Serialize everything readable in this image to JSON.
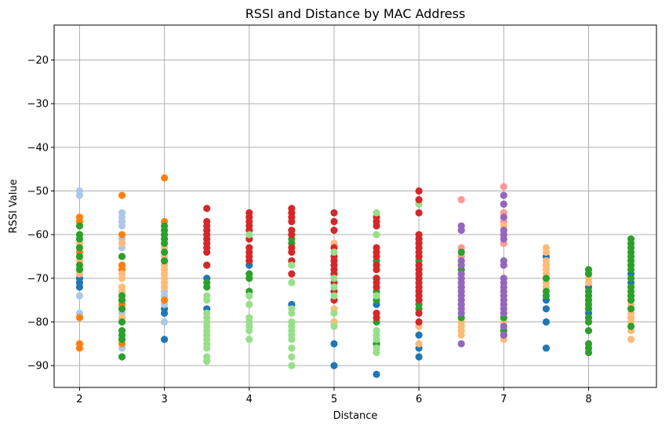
{
  "chart_data": {
    "type": "scatter",
    "title": "RSSI and Distance by MAC Address",
    "xlabel": "Distance",
    "ylabel": "RSSI Value",
    "xlim": [
      1.7,
      8.8
    ],
    "ylim": [
      -95,
      -12
    ],
    "xticks": [
      2,
      3,
      4,
      5,
      6,
      7,
      8
    ],
    "yticks": [
      -90,
      -80,
      -70,
      -60,
      -50,
      -40,
      -30,
      -20
    ],
    "xtick_labels": [
      "2",
      "3",
      "4",
      "5",
      "6",
      "7",
      "8"
    ],
    "ytick_labels": [
      "−90",
      "−80",
      "−70",
      "−60",
      "−50",
      "−40",
      "−30",
      "−20"
    ],
    "grid": true,
    "legend": "none",
    "series": [
      {
        "color": "#1f77b4",
        "x": 2,
        "y": [
          -70,
          -72,
          -71
        ]
      },
      {
        "color": "#aec7e8",
        "x": 2,
        "y": [
          -50,
          -51,
          -74,
          -78,
          -68,
          -66
        ]
      },
      {
        "color": "#ff7f0e",
        "x": 2,
        "y": [
          -56,
          -57,
          -79,
          -85,
          -86,
          -64
        ]
      },
      {
        "color": "#ffbb78",
        "x": 2,
        "y": [
          -60,
          -62,
          -66,
          -69
        ]
      },
      {
        "color": "#2ca02c",
        "x": 2,
        "y": [
          -58,
          -60,
          -61,
          -63,
          -65,
          -67,
          -68
        ]
      },
      {
        "color": "#aec7e8",
        "x": 2.5,
        "y": [
          -55,
          -56,
          -57,
          -58,
          -61,
          -63,
          -67,
          -73,
          -78,
          -86
        ]
      },
      {
        "color": "#ff7f0e",
        "x": 2.5,
        "y": [
          -51,
          -60,
          -67,
          -68,
          -75,
          -76,
          -77,
          -84,
          -85
        ]
      },
      {
        "color": "#ffbb78",
        "x": 2.5,
        "y": [
          -62,
          -65,
          -69,
          -70,
          -72,
          -73,
          -79
        ]
      },
      {
        "color": "#2ca02c",
        "x": 2.5,
        "y": [
          -65,
          -74,
          -75,
          -77,
          -80,
          -82,
          -83,
          -84,
          -88
        ]
      },
      {
        "color": "#1f77b4",
        "x": 3,
        "y": [
          -78,
          -84,
          -77
        ]
      },
      {
        "color": "#aec7e8",
        "x": 3,
        "y": [
          -73,
          -74,
          -76,
          -80
        ]
      },
      {
        "color": "#ff7f0e",
        "x": 3,
        "y": [
          -47,
          -57,
          -75
        ]
      },
      {
        "color": "#ffbb78",
        "x": 3,
        "y": [
          -63,
          -64,
          -65,
          -66,
          -67,
          -68,
          -69,
          -70,
          -71,
          -72
        ]
      },
      {
        "color": "#2ca02c",
        "x": 3,
        "y": [
          -58,
          -59,
          -60,
          -61,
          -62,
          -64,
          -66
        ]
      },
      {
        "color": "#1f77b4",
        "x": 3.5,
        "y": [
          -70,
          -77
        ]
      },
      {
        "color": "#2ca02c",
        "x": 3.5,
        "y": [
          -67,
          -71,
          -72
        ]
      },
      {
        "color": "#d62728",
        "x": 3.5,
        "y": [
          -54,
          -57,
          -58,
          -59,
          -60,
          -61,
          -62,
          -63,
          -64,
          -67
        ]
      },
      {
        "color": "#98df8a",
        "x": 3.5,
        "y": [
          -74,
          -75,
          -78,
          -79,
          -80,
          -81,
          -82,
          -83,
          -84,
          -85,
          -86,
          -88,
          -89
        ]
      },
      {
        "color": "#1f77b4",
        "x": 4,
        "y": [
          -67
        ]
      },
      {
        "color": "#2ca02c",
        "x": 4,
        "y": [
          -69,
          -70,
          -73
        ]
      },
      {
        "color": "#d62728",
        "x": 4,
        "y": [
          -55,
          -56,
          -57,
          -58,
          -59,
          -61,
          -63,
          -64,
          -65,
          -66
        ]
      },
      {
        "color": "#98df8a",
        "x": 4,
        "y": [
          -60,
          -74,
          -76,
          -79,
          -80,
          -81,
          -82,
          -84
        ]
      },
      {
        "color": "#1f77b4",
        "x": 4.5,
        "y": [
          -76
        ]
      },
      {
        "color": "#2ca02c",
        "x": 4.5,
        "y": [
          -61,
          -62
        ]
      },
      {
        "color": "#d62728",
        "x": 4.5,
        "y": [
          -54,
          -55,
          -56,
          -57,
          -59,
          -60,
          -63,
          -64,
          -66,
          -69
        ]
      },
      {
        "color": "#98df8a",
        "x": 4.5,
        "y": [
          -67,
          -71,
          -77,
          -78,
          -80,
          -81,
          -82,
          -83,
          -84,
          -86,
          -88,
          -90
        ]
      },
      {
        "color": "#1f77b4",
        "x": 5,
        "y": [
          -80,
          -85,
          -90
        ]
      },
      {
        "color": "#ffbb78",
        "x": 5,
        "y": [
          -62,
          -77,
          -80
        ]
      },
      {
        "color": "#d62728",
        "x": 5,
        "y": [
          -55,
          -57,
          -59,
          -63,
          -65,
          -66,
          -67,
          -68,
          -69,
          -71,
          -73,
          -75
        ]
      },
      {
        "color": "#98df8a",
        "x": 5,
        "y": [
          -64,
          -70,
          -72,
          -74,
          -78,
          -81
        ]
      },
      {
        "color": "#1f77b4",
        "x": 5.5,
        "y": [
          -92,
          -85,
          -76
        ]
      },
      {
        "color": "#2ca02c",
        "x": 5.5,
        "y": [
          -66,
          -70,
          -73,
          -75,
          -80,
          -85
        ]
      },
      {
        "color": "#d62728",
        "x": 5.5,
        "y": [
          -56,
          -57,
          -58,
          -63,
          -64,
          -65,
          -67,
          -68,
          -70,
          -71,
          -72,
          -78,
          -79
        ]
      },
      {
        "color": "#98df8a",
        "x": 5.5,
        "y": [
          -55,
          -60,
          -74,
          -82,
          -83,
          -84,
          -86,
          -87
        ]
      },
      {
        "color": "#1f77b4",
        "x": 6,
        "y": [
          -83,
          -86,
          -88
        ]
      },
      {
        "color": "#ffbb78",
        "x": 6,
        "y": [
          -81,
          -85
        ]
      },
      {
        "color": "#2ca02c",
        "x": 6,
        "y": [
          -66,
          -76,
          -77
        ]
      },
      {
        "color": "#98df8a",
        "x": 6,
        "y": [
          -53
        ]
      },
      {
        "color": "#d62728",
        "x": 6,
        "y": [
          -50,
          -52,
          -55,
          -60,
          -61,
          -62,
          -63,
          -64,
          -65,
          -67,
          -68,
          -69,
          -70,
          -71,
          -72,
          -73,
          -74,
          -75,
          -78,
          -80
        ]
      },
      {
        "color": "#ff9896",
        "x": 6.5,
        "y": [
          -52,
          -63,
          -65
        ]
      },
      {
        "color": "#ffbb78",
        "x": 6.5,
        "y": [
          -67,
          -73,
          -76,
          -80,
          -81,
          -82,
          -83
        ]
      },
      {
        "color": "#2ca02c",
        "x": 6.5,
        "y": [
          -64,
          -68,
          -72,
          -79
        ]
      },
      {
        "color": "#9467bd",
        "x": 6.5,
        "y": [
          -58,
          -59,
          -66,
          -67,
          -69,
          -70,
          -71,
          -72,
          -73,
          -74,
          -75,
          -76,
          -77,
          -78,
          -85
        ]
      },
      {
        "color": "#ff9896",
        "x": 7,
        "y": [
          -49,
          -55,
          -57,
          -62
        ]
      },
      {
        "color": "#ffbb78",
        "x": 7,
        "y": [
          -58,
          -80,
          -84
        ]
      },
      {
        "color": "#d62728",
        "x": 7,
        "y": [
          -83
        ]
      },
      {
        "color": "#2ca02c",
        "x": 7,
        "y": [
          -79,
          -82
        ]
      },
      {
        "color": "#9467bd",
        "x": 7,
        "y": [
          -51,
          -53,
          -56,
          -59,
          -60,
          -61,
          -66,
          -67,
          -70,
          -71,
          -72,
          -73,
          -74,
          -75,
          -76,
          -77,
          -78,
          -81,
          -83
        ]
      },
      {
        "color": "#1f77b4",
        "x": 7.5,
        "y": [
          -65,
          -75,
          -77,
          -80,
          -86
        ]
      },
      {
        "color": "#ffbb78",
        "x": 7.5,
        "y": [
          -63,
          -64,
          -66,
          -67,
          -68,
          -69,
          -70,
          -71,
          -72
        ]
      },
      {
        "color": "#2ca02c",
        "x": 7.5,
        "y": [
          -70,
          -73,
          -74
        ]
      },
      {
        "color": "#1f77b4",
        "x": 8,
        "y": [
          -72,
          -78
        ]
      },
      {
        "color": "#ffbb78",
        "x": 8,
        "y": [
          -70,
          -71
        ]
      },
      {
        "color": "#2ca02c",
        "x": 8,
        "y": [
          -68,
          -69,
          -73,
          -74,
          -75,
          -76,
          -77,
          -79,
          -80,
          -82,
          -85,
          -86,
          -87
        ]
      },
      {
        "color": "#1f77b4",
        "x": 8.5,
        "y": [
          -69,
          -71
        ]
      },
      {
        "color": "#ffbb78",
        "x": 8.5,
        "y": [
          -76,
          -78,
          -79,
          -80,
          -82,
          -84
        ]
      },
      {
        "color": "#2ca02c",
        "x": 8.5,
        "y": [
          -61,
          -62,
          -63,
          -64,
          -65,
          -66,
          -67,
          -68,
          -70,
          -72,
          -73,
          -74,
          -75,
          -77,
          -81
        ]
      }
    ]
  }
}
